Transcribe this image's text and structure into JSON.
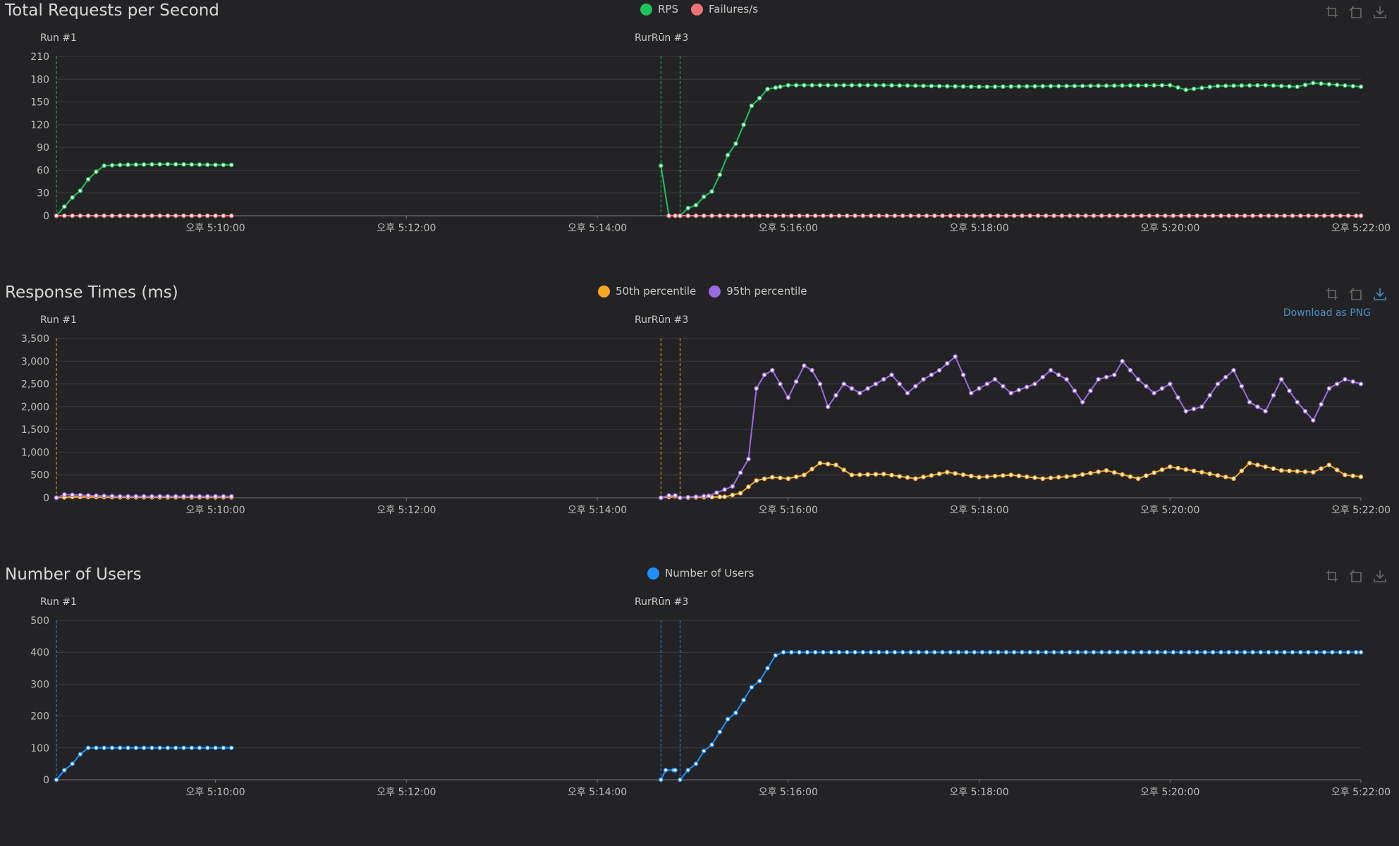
{
  "colors": {
    "background": "#232325",
    "grid": "#3c3c3e",
    "axis": "#7a7a7a",
    "rps": "#1ec25a",
    "failures": "#f07178",
    "p50": "#f5a623",
    "p95": "#9b6ae0",
    "users": "#1e90ff",
    "toolbox": "#6a6a6a",
    "toolbox_active": "#4a90c8"
  },
  "x_ticks": [
    "오후 5:10:00",
    "오후 5:12:00",
    "오후 5:14:00",
    "오후 5:16:00",
    "오후 5:18:00",
    "오후 5:20:00",
    "오후 5:22:00"
  ],
  "run_labels": {
    "run1": "Run #1",
    "run3": "RurRūn #3"
  },
  "toolbox": {
    "zoom_icon": "zoom-icon",
    "restore_icon": "restore-icon",
    "download_icon": "download-icon",
    "download_tooltip": "Download as PNG"
  },
  "chart_data": [
    {
      "id": "rps",
      "type": "line",
      "title": "Total Requests per Second",
      "x_range": [
        "17:08:20",
        "17:22:00"
      ],
      "ylim": [
        0,
        210
      ],
      "y_ticks": [
        0,
        30,
        60,
        90,
        120,
        150,
        180,
        210
      ],
      "grid": true,
      "legend_position": "top-center",
      "series": [
        {
          "name": "RPS",
          "color": "#1ec25a",
          "segments": [
            [
              [
                "17:08:20",
                0
              ],
              [
                "17:08:25",
                12
              ],
              [
                "17:08:30",
                24
              ],
              [
                "17:08:35",
                33
              ],
              [
                "17:08:40",
                48
              ],
              [
                "17:08:45",
                58
              ],
              [
                "17:08:50",
                66
              ],
              [
                "17:09:00",
                67
              ],
              [
                "17:09:30",
                68
              ],
              [
                "17:10:00",
                67
              ],
              [
                "17:10:10",
                67
              ]
            ],
            [
              [
                "17:14:40",
                66
              ],
              [
                "17:14:45",
                0
              ]
            ],
            [
              [
                "17:14:52",
                0
              ],
              [
                "17:14:57",
                10
              ],
              [
                "17:15:02",
                14
              ],
              [
                "17:15:07",
                25
              ],
              [
                "17:15:12",
                32
              ],
              [
                "17:15:17",
                54
              ],
              [
                "17:15:22",
                80
              ],
              [
                "17:15:27",
                95
              ],
              [
                "17:15:32",
                120
              ],
              [
                "17:15:37",
                145
              ],
              [
                "17:15:42",
                155
              ],
              [
                "17:15:47",
                167
              ],
              [
                "17:15:55",
                170
              ],
              [
                "17:16:00",
                172
              ],
              [
                "17:17:00",
                172
              ],
              [
                "17:18:00",
                170
              ],
              [
                "17:19:00",
                171
              ],
              [
                "17:20:00",
                172
              ],
              [
                "17:20:10",
                166
              ],
              [
                "17:20:30",
                171
              ],
              [
                "17:21:00",
                172
              ],
              [
                "17:21:20",
                170
              ],
              [
                "17:21:30",
                175
              ],
              [
                "17:22:00",
                170
              ]
            ]
          ]
        },
        {
          "name": "Failures/s",
          "color": "#f07178",
          "segments": [
            [
              [
                "17:08:20",
                0
              ],
              [
                "17:10:10",
                0
              ]
            ],
            [
              [
                "17:14:45",
                0
              ],
              [
                "17:14:49",
                0
              ]
            ],
            [
              [
                "17:14:52",
                0
              ],
              [
                "17:22:00",
                0
              ]
            ]
          ]
        }
      ]
    },
    {
      "id": "response",
      "type": "line",
      "title": "Response Times (ms)",
      "x_range": [
        "17:08:20",
        "17:22:00"
      ],
      "ylim": [
        0,
        3500
      ],
      "y_ticks": [
        "0",
        "500",
        "1,000",
        "1,500",
        "2,000",
        "2,500",
        "3,000",
        "3,500"
      ],
      "grid": true,
      "legend_position": "top-center",
      "series": [
        {
          "name": "50th percentile",
          "color": "#f5a623",
          "segments": [
            [
              [
                "17:08:20",
                0
              ],
              [
                "17:08:30",
                20
              ],
              [
                "17:09:00",
                10
              ],
              [
                "17:10:10",
                10
              ]
            ],
            [
              [
                "17:14:40",
                0
              ],
              [
                "17:14:49",
                30
              ]
            ],
            [
              [
                "17:14:52",
                0
              ],
              [
                "17:15:20",
                20
              ],
              [
                "17:15:30",
                100
              ],
              [
                "17:15:40",
                380
              ],
              [
                "17:15:50",
                450
              ],
              [
                "17:16:00",
                420
              ],
              [
                "17:16:10",
                500
              ],
              [
                "17:16:20",
                760
              ],
              [
                "17:16:30",
                720
              ],
              [
                "17:16:40",
                500
              ],
              [
                "17:17:00",
                520
              ],
              [
                "17:17:20",
                420
              ],
              [
                "17:17:40",
                560
              ],
              [
                "17:18:00",
                450
              ],
              [
                "17:18:20",
                500
              ],
              [
                "17:18:40",
                420
              ],
              [
                "17:19:00",
                480
              ],
              [
                "17:19:20",
                600
              ],
              [
                "17:19:40",
                420
              ],
              [
                "17:20:00",
                680
              ],
              [
                "17:20:20",
                560
              ],
              [
                "17:20:40",
                420
              ],
              [
                "17:20:50",
                760
              ],
              [
                "17:21:10",
                600
              ],
              [
                "17:21:30",
                560
              ],
              [
                "17:21:40",
                720
              ],
              [
                "17:21:50",
                500
              ],
              [
                "17:22:00",
                460
              ]
            ]
          ]
        },
        {
          "name": "95th percentile",
          "color": "#9b6ae0",
          "segments": [
            [
              [
                "17:08:20",
                0
              ],
              [
                "17:08:25",
                70
              ],
              [
                "17:08:40",
                50
              ],
              [
                "17:09:00",
                30
              ],
              [
                "17:10:10",
                30
              ]
            ],
            [
              [
                "17:14:40",
                0
              ],
              [
                "17:14:45",
                50
              ],
              [
                "17:14:49",
                50
              ]
            ],
            [
              [
                "17:14:52",
                0
              ],
              [
                "17:15:10",
                40
              ],
              [
                "17:15:25",
                250
              ],
              [
                "17:15:35",
                850
              ],
              [
                "17:15:40",
                2400
              ],
              [
                "17:15:45",
                2700
              ],
              [
                "17:15:50",
                2800
              ],
              [
                "17:15:55",
                2500
              ],
              [
                "17:16:00",
                2200
              ],
              [
                "17:16:10",
                2900
              ],
              [
                "17:16:15",
                2800
              ],
              [
                "17:16:20",
                2500
              ],
              [
                "17:16:25",
                2000
              ],
              [
                "17:16:35",
                2500
              ],
              [
                "17:16:45",
                2300
              ],
              [
                "17:16:55",
                2500
              ],
              [
                "17:17:05",
                2700
              ],
              [
                "17:17:15",
                2300
              ],
              [
                "17:17:25",
                2600
              ],
              [
                "17:17:35",
                2800
              ],
              [
                "17:17:45",
                3100
              ],
              [
                "17:17:55",
                2300
              ],
              [
                "17:18:10",
                2600
              ],
              [
                "17:18:20",
                2300
              ],
              [
                "17:18:35",
                2500
              ],
              [
                "17:18:45",
                2800
              ],
              [
                "17:18:55",
                2600
              ],
              [
                "17:19:05",
                2100
              ],
              [
                "17:19:15",
                2600
              ],
              [
                "17:19:25",
                2700
              ],
              [
                "17:19:30",
                3000
              ],
              [
                "17:19:40",
                2600
              ],
              [
                "17:19:50",
                2300
              ],
              [
                "17:20:00",
                2500
              ],
              [
                "17:20:10",
                1900
              ],
              [
                "17:20:20",
                2000
              ],
              [
                "17:20:30",
                2500
              ],
              [
                "17:20:40",
                2800
              ],
              [
                "17:20:50",
                2100
              ],
              [
                "17:21:00",
                1900
              ],
              [
                "17:21:10",
                2600
              ],
              [
                "17:21:20",
                2100
              ],
              [
                "17:21:30",
                1700
              ],
              [
                "17:21:40",
                2400
              ],
              [
                "17:21:50",
                2600
              ],
              [
                "17:22:00",
                2500
              ]
            ]
          ]
        }
      ]
    },
    {
      "id": "users",
      "type": "line",
      "title": "Number of Users",
      "x_range": [
        "17:08:20",
        "17:22:00"
      ],
      "ylim": [
        0,
        500
      ],
      "y_ticks": [
        0,
        100,
        200,
        300,
        400,
        500
      ],
      "grid": true,
      "legend_position": "top-center",
      "series": [
        {
          "name": "Number of Users",
          "color": "#1e90ff",
          "segments": [
            [
              [
                "17:08:20",
                0
              ],
              [
                "17:08:25",
                30
              ],
              [
                "17:08:30",
                50
              ],
              [
                "17:08:35",
                80
              ],
              [
                "17:08:40",
                100
              ],
              [
                "17:10:10",
                100
              ]
            ],
            [
              [
                "17:14:40",
                0
              ],
              [
                "17:14:43",
                30
              ],
              [
                "17:14:49",
                30
              ]
            ],
            [
              [
                "17:14:52",
                0
              ],
              [
                "17:14:57",
                30
              ],
              [
                "17:15:02",
                50
              ],
              [
                "17:15:07",
                90
              ],
              [
                "17:15:12",
                110
              ],
              [
                "17:15:17",
                150
              ],
              [
                "17:15:22",
                190
              ],
              [
                "17:15:27",
                210
              ],
              [
                "17:15:32",
                250
              ],
              [
                "17:15:37",
                290
              ],
              [
                "17:15:42",
                310
              ],
              [
                "17:15:47",
                350
              ],
              [
                "17:15:52",
                390
              ],
              [
                "17:15:57",
                400
              ],
              [
                "17:22:00",
                400
              ]
            ]
          ]
        }
      ]
    }
  ]
}
